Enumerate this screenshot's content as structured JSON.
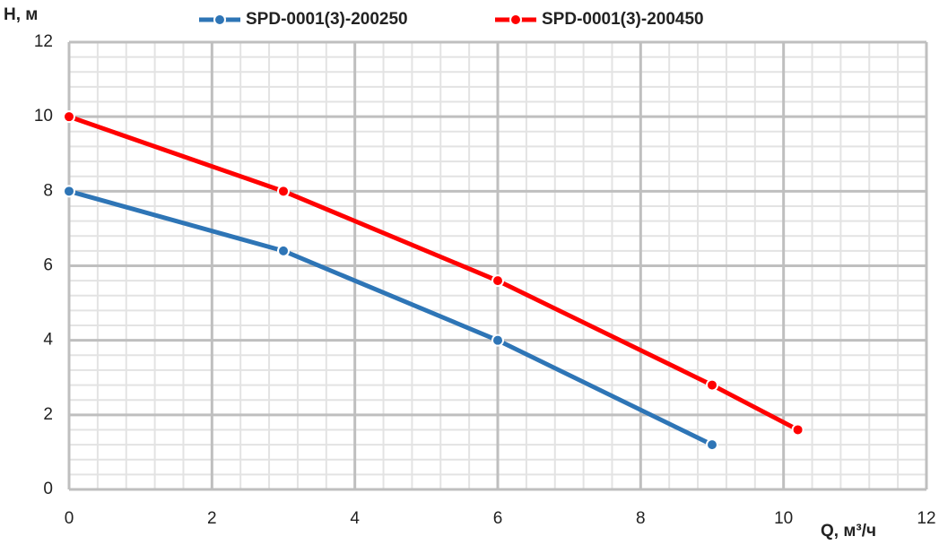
{
  "chart_data": {
    "type": "line",
    "x_label": "Q, м³/ч",
    "y_label": "H, м",
    "series": [
      {
        "name": "SPD-0001(3)-200250",
        "color": "#2e75b6",
        "x": [
          0,
          3,
          6,
          9
        ],
        "values": [
          8,
          6.4,
          4,
          1.2
        ]
      },
      {
        "name": "SPD-0001(3)-200450",
        "color": "#ff0000",
        "x": [
          0,
          3,
          6,
          9,
          10.2
        ],
        "values": [
          10,
          8,
          5.6,
          2.8,
          1.6
        ]
      }
    ],
    "xlim": [
      0,
      12
    ],
    "xticks": [
      0,
      2,
      4,
      6,
      8,
      10,
      12
    ],
    "ylim": [
      0,
      12
    ],
    "yticks": [
      0,
      2,
      4,
      6,
      8,
      10,
      12
    ],
    "grid": true,
    "legend": "top"
  }
}
